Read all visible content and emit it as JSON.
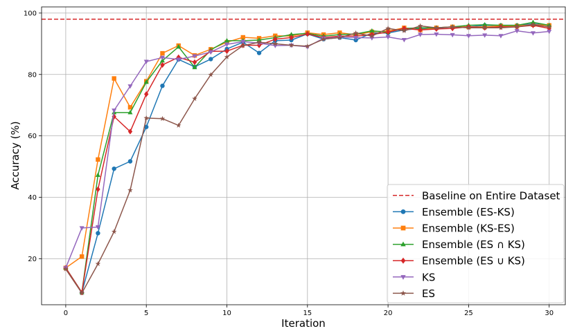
{
  "chart_data": {
    "type": "line",
    "xlabel": "Iteration",
    "ylabel": "Accuracy (%)",
    "xlim": [
      -1.5,
      31.0
    ],
    "ylim": [
      5,
      102
    ],
    "xticks": [
      0,
      5,
      10,
      15,
      20,
      25,
      30
    ],
    "yticks": [
      20,
      40,
      60,
      80,
      100
    ],
    "grid": true,
    "legend_position": "lower-right",
    "baseline": {
      "name": "Baseline on Entire Dataset",
      "value": 98.0,
      "color": "#d62728"
    },
    "x": [
      0,
      1,
      2,
      3,
      4,
      5,
      6,
      7,
      8,
      9,
      10,
      11,
      12,
      13,
      14,
      15,
      16,
      17,
      18,
      19,
      20,
      21,
      22,
      23,
      24,
      25,
      26,
      27,
      28,
      29,
      30
    ],
    "series": [
      {
        "name": "Ensemble (ES-KS)",
        "color": "#1f77b4",
        "marker": "circle",
        "values": [
          17.0,
          9.0,
          28.3,
          49.3,
          51.7,
          62.9,
          76.3,
          84.9,
          82.5,
          85.0,
          88.3,
          90.5,
          87.0,
          91.0,
          91.2,
          93.2,
          91.5,
          92.0,
          91.2,
          93.5,
          93.5,
          94.5,
          95.0,
          95.0,
          95.5,
          95.5,
          96.0,
          96.0,
          96.0,
          96.5,
          96.0
        ]
      },
      {
        "name": "Ensemble (KS-ES)",
        "color": "#ff7f0e",
        "marker": "square",
        "values": [
          17.0,
          20.7,
          52.3,
          78.7,
          69.3,
          77.8,
          86.9,
          89.4,
          86.2,
          88.2,
          90.5,
          92.1,
          91.8,
          92.6,
          92.5,
          93.6,
          93.0,
          93.6,
          92.9,
          93.9,
          94.1,
          95.2,
          94.5,
          95.2,
          95.5,
          95.5,
          95.5,
          95.8,
          95.8,
          96.2,
          96.0
        ]
      },
      {
        "name": "Ensemble (ES ∩ KS)",
        "color": "#2ca02c",
        "marker": "triangle-up",
        "values": [
          17.0,
          9.0,
          47.2,
          67.6,
          67.6,
          77.5,
          84.5,
          89.0,
          82.3,
          88.0,
          91.0,
          91.0,
          91.2,
          92.0,
          93.0,
          93.4,
          92.5,
          93.0,
          93.2,
          94.2,
          93.8,
          95.0,
          95.2,
          95.2,
          95.5,
          96.0,
          96.2,
          96.0,
          96.0,
          97.0,
          96.0
        ]
      },
      {
        "name": "Ensemble (ES ∪ KS)",
        "color": "#d62728",
        "marker": "diamond",
        "values": [
          17.0,
          9.0,
          42.6,
          66.3,
          61.4,
          73.6,
          83.1,
          85.6,
          84.0,
          87.5,
          87.6,
          89.5,
          89.5,
          91.5,
          92.0,
          93.2,
          92.0,
          92.5,
          92.5,
          93.0,
          93.8,
          95.0,
          94.5,
          94.8,
          95.0,
          95.5,
          95.2,
          95.5,
          95.5,
          96.0,
          95.0
        ]
      },
      {
        "name": "KS",
        "color": "#9467bd",
        "marker": "triangle-down",
        "values": [
          17.0,
          30.0,
          30.3,
          68.3,
          76.2,
          84.2,
          85.5,
          84.9,
          86.0,
          87.3,
          89.8,
          90.7,
          90.2,
          89.4,
          89.5,
          89.0,
          91.8,
          92.1,
          92.0,
          91.9,
          92.2,
          91.3,
          93.0,
          93.1,
          92.9,
          92.6,
          92.8,
          92.6,
          94.2,
          93.5,
          94.0
        ]
      },
      {
        "name": "ES",
        "color": "#8c564b",
        "marker": "star",
        "values": [
          16.6,
          8.8,
          18.3,
          28.8,
          42.3,
          65.8,
          65.6,
          63.4,
          72.1,
          79.9,
          85.7,
          89.4,
          90.5,
          90.0,
          89.5,
          89.2,
          91.5,
          92.0,
          93.5,
          92.5,
          95.0,
          94.2,
          95.8,
          95.2,
          95.5,
          95.2,
          95.2,
          95.2,
          95.5,
          96.2,
          95.5
        ]
      }
    ]
  }
}
